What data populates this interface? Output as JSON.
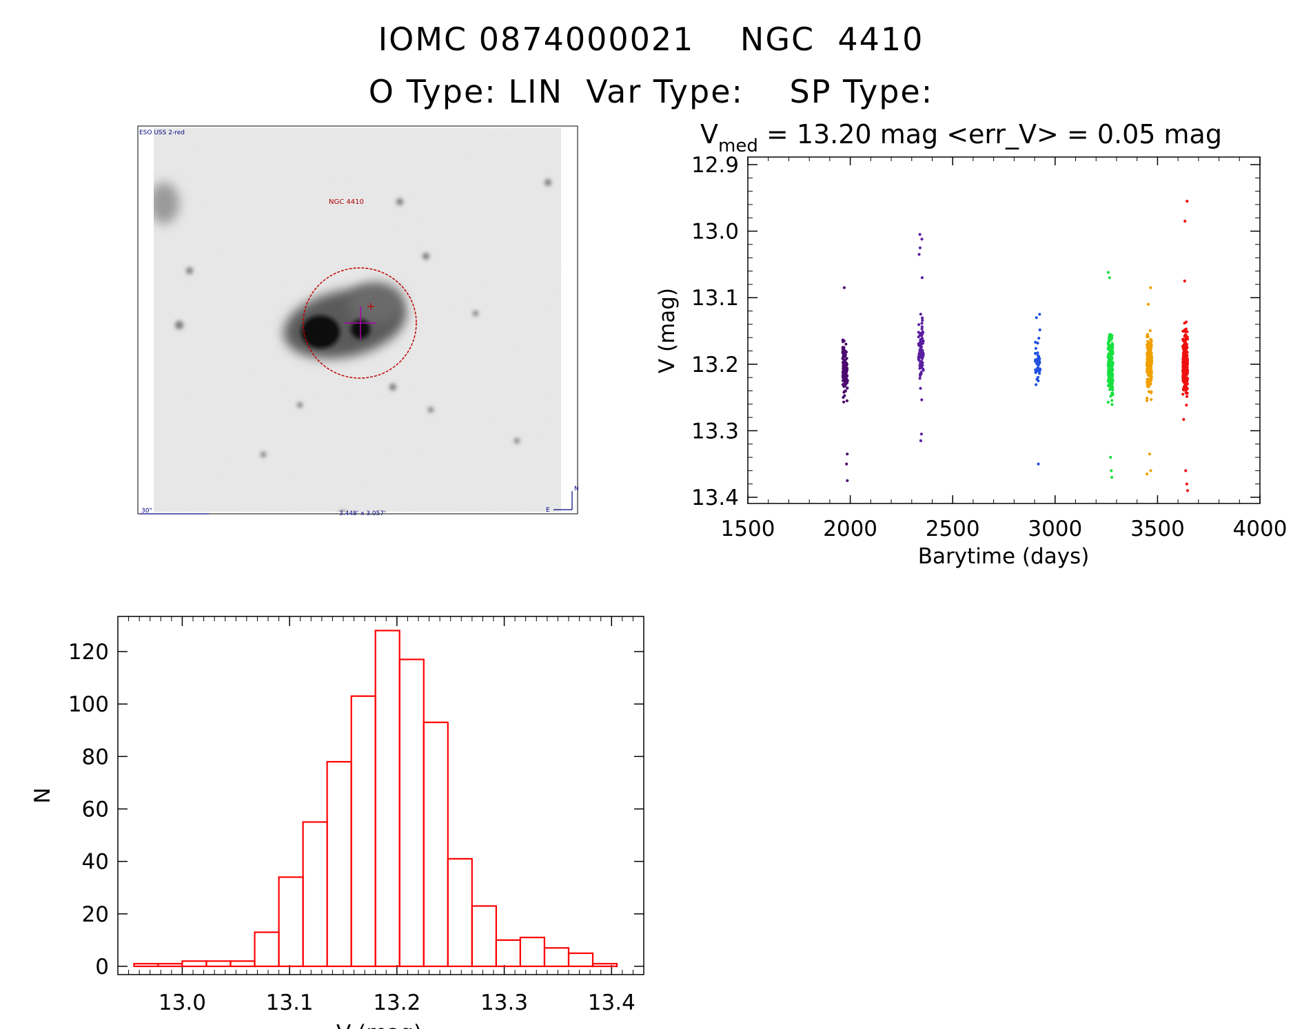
{
  "header": {
    "title_line1": "IOMC 0874000021    NGC  4410",
    "title_line2": "O Type: LIN  Var Type:    SP Type:"
  },
  "finder": {
    "survey_label": "ESO USS 2-red",
    "object_label": "NGC 4410",
    "scale_label": "30\"",
    "size_label": "3.448' x 3.057'",
    "north_label": "N",
    "east_label": "E",
    "colors": {
      "circle": "#c00000",
      "reticle": "#b000b0",
      "labels": "#000080"
    }
  },
  "chart_data": [
    {
      "type": "scatter",
      "name": "light-curve",
      "title_prefix": "V",
      "title_subscript": "med",
      "title_suffix": " = 13.20 mag <err_V> = 0.05 mag",
      "xlabel": "Barytime (days)",
      "ylabel": "V (mag)",
      "xlim": [
        1500,
        4000
      ],
      "ylim": [
        13.4,
        12.9
      ],
      "y_inverted": true,
      "xticks": [
        1500,
        2000,
        2500,
        3000,
        3500,
        4000
      ],
      "yticks": [
        "12.9",
        "13.0",
        "13.1",
        "13.2",
        "13.3",
        "13.4"
      ],
      "groups": [
        {
          "x_center": 1975,
          "y_center": 13.205,
          "spread": 0.035,
          "n": 120,
          "ymin": 13.09,
          "ymax": 13.375,
          "color": "#4b0a6e",
          "extra": [
            13.375,
            13.35,
            13.335,
            13.085
          ]
        },
        {
          "x_center": 2345,
          "y_center": 13.18,
          "spread": 0.04,
          "n": 90,
          "ymin": 13.0,
          "ymax": 13.32,
          "color": "#5a1fa0",
          "extra": [
            13.005,
            13.012,
            13.025,
            13.035,
            13.07,
            13.305,
            13.315
          ]
        },
        {
          "x_center": 2915,
          "y_center": 13.2,
          "spread": 0.03,
          "n": 40,
          "ymin": 13.125,
          "ymax": 13.35,
          "color": "#2050e0",
          "extra": [
            13.125,
            13.13,
            13.35
          ]
        },
        {
          "x_center": 3270,
          "y_center": 13.2,
          "spread": 0.04,
          "n": 220,
          "ymin": 13.06,
          "ymax": 13.37,
          "color": "#18e040",
          "extra": [
            13.062,
            13.07,
            13.34,
            13.36,
            13.37
          ]
        },
        {
          "x_center": 3460,
          "y_center": 13.2,
          "spread": 0.035,
          "n": 200,
          "ymin": 13.085,
          "ymax": 13.365,
          "color": "#f0a000",
          "extra": [
            13.085,
            13.11,
            13.335,
            13.36,
            13.365
          ]
        },
        {
          "x_center": 3635,
          "y_center": 13.2,
          "spread": 0.04,
          "n": 230,
          "ymin": 12.955,
          "ymax": 13.39,
          "color": "#ee1010",
          "extra": [
            12.955,
            12.985,
            13.075,
            13.36,
            13.38,
            13.39
          ]
        }
      ]
    },
    {
      "type": "bar",
      "name": "histogram",
      "title": "",
      "xlabel": "V (mag)",
      "ylabel": "N",
      "xlim": [
        12.94,
        13.43
      ],
      "ylim": [
        0,
        130
      ],
      "xticks": [
        "13.0",
        "13.1",
        "13.2",
        "13.3",
        "13.4"
      ],
      "yticks": [
        "0",
        "20",
        "40",
        "60",
        "80",
        "100",
        "120"
      ],
      "bar_color": "#ff0000",
      "bin_width": 0.0225,
      "bin_starts": [
        12.955,
        12.9775,
        13.0,
        13.0225,
        13.045,
        13.0675,
        13.09,
        13.1125,
        13.135,
        13.1575,
        13.18,
        13.2025,
        13.225,
        13.2475,
        13.27,
        13.2925,
        13.315,
        13.3375,
        13.36,
        13.3825
      ],
      "values": [
        1,
        1,
        2,
        2,
        2,
        13,
        34,
        55,
        78,
        103,
        128,
        117,
        93,
        41,
        23,
        10,
        11,
        7,
        5,
        1
      ]
    }
  ]
}
